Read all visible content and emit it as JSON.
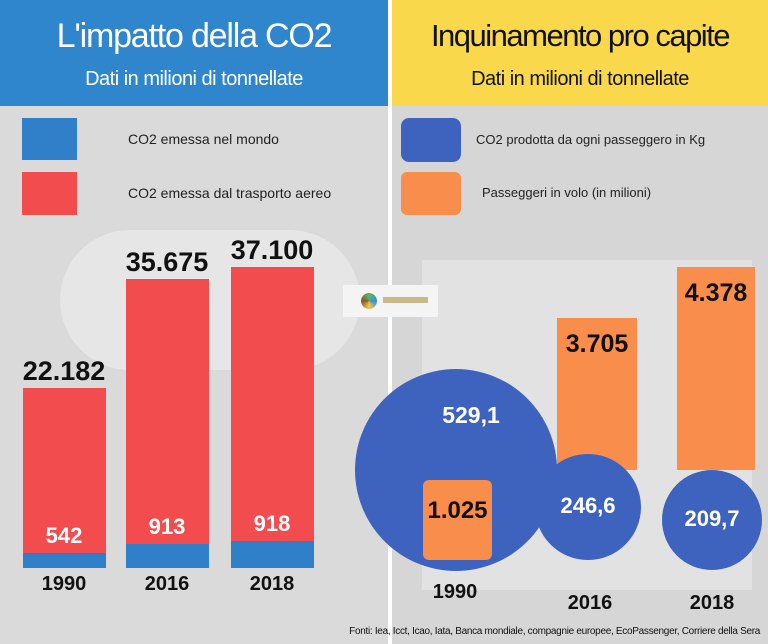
{
  "left": {
    "title": "L'impatto della CO2",
    "subtitle": "Dati in milioni di tonnellate",
    "header_color": "#2f86cc",
    "legend": [
      {
        "label": "CO2 emessa nel mondo",
        "color": "#2f80c9"
      },
      {
        "label": "CO2 emessa dal trasporto aereo",
        "color": "#f24c4e"
      }
    ]
  },
  "right": {
    "title": "Inquinamento pro capite",
    "subtitle": "Dati in milioni di tonnellate",
    "header_color": "#f9d84b",
    "legend": [
      {
        "label": "CO2 prodotta da ogni passeggero in Kg",
        "color": "#3e63be"
      },
      {
        "label": "Passeggeri in volo (in milioni)",
        "color": "#f98d4b"
      }
    ]
  },
  "chart_data": [
    {
      "type": "bar",
      "categories": [
        "1990",
        "2016",
        "2018"
      ],
      "series": [
        {
          "name": "CO2 emessa nel mondo",
          "values": [
            22182,
            35675,
            37100
          ],
          "labels": [
            "22.182",
            "35.675",
            "37.100"
          ]
        },
        {
          "name": "CO2 emessa dal trasporto aereo",
          "values": [
            542,
            913,
            918
          ],
          "labels": [
            "542",
            "913",
            "918"
          ]
        }
      ]
    },
    {
      "type": "bar",
      "categories": [
        "1990",
        "2016",
        "2018"
      ],
      "series": [
        {
          "name": "CO2 prodotta da ogni passeggero in Kg",
          "values": [
            529.1,
            246.6,
            209.7
          ],
          "labels": [
            "529,1",
            "246,6",
            "209,7"
          ]
        },
        {
          "name": "Passeggeri in volo (in milioni)",
          "values": [
            1025,
            3705,
            4378
          ],
          "labels": [
            "1.025",
            "3.705",
            "4.378"
          ]
        }
      ]
    }
  ],
  "logo_text": "XIVEARIA.net",
  "footer": "Fonti: Iea, Icct, Icao, Iata, Banca mondiale, compagnie europee, EcoPassenger, Corriere della Sera"
}
